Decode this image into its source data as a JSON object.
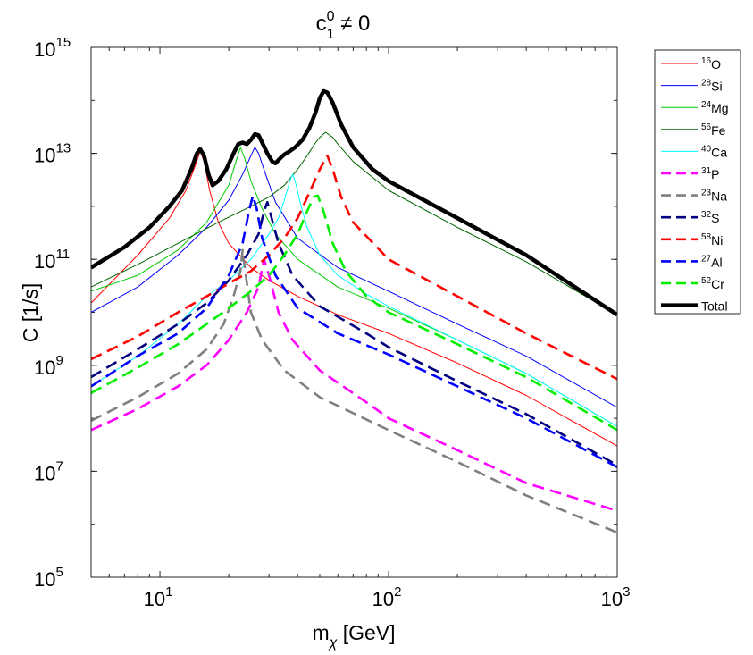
{
  "chart_data": {
    "type": "line",
    "title": {
      "base": "c",
      "sup": "0",
      "sub": "1",
      "rest": " ≠ 0"
    },
    "xlabel": {
      "base": "m",
      "sub": "χ",
      "rest": " [GeV]"
    },
    "ylabel": "C [1/s]",
    "xscale": "log",
    "yscale": "log",
    "xlim": [
      5,
      1000
    ],
    "ylim": [
      100000.0,
      1000000000000000.0
    ],
    "xticks": [
      {
        "value": 10,
        "base": "10",
        "exp": "1"
      },
      {
        "value": 100,
        "base": "10",
        "exp": "2"
      },
      {
        "value": 1000,
        "base": "10",
        "exp": "3"
      }
    ],
    "yticks": [
      {
        "value": 100000.0,
        "base": "10",
        "exp": "5"
      },
      {
        "value": 10000000.0,
        "base": "10",
        "exp": "7"
      },
      {
        "value": 1000000000.0,
        "base": "10",
        "exp": "9"
      },
      {
        "value": 100000000000.0,
        "base": "10",
        "exp": "11"
      },
      {
        "value": 10000000000000.0,
        "base": "10",
        "exp": "13"
      },
      {
        "value": 1000000000000000.0,
        "base": "10",
        "exp": "15"
      }
    ],
    "legend_position": "outside-top-right",
    "series": [
      {
        "name": "O",
        "mass": "16",
        "color": "#ff0000",
        "style": "solid",
        "points": [
          [
            5,
            15000000000.0
          ],
          [
            8,
            120000000000.0
          ],
          [
            11,
            600000000000.0
          ],
          [
            13,
            2000000000000.0
          ],
          [
            14.3,
            6000000000000.0
          ],
          [
            15,
            11000000000000.0
          ],
          [
            15.6,
            7000000000000.0
          ],
          [
            16.5,
            2000000000000.0
          ],
          [
            18,
            500000000000.0
          ],
          [
            20,
            200000000000.0
          ],
          [
            25,
            70000000000.0
          ],
          [
            30,
            40000000000.0
          ],
          [
            40,
            20000000000.0
          ],
          [
            60,
            9000000000.0
          ],
          [
            100,
            4000000000.0
          ],
          [
            200,
            1100000000.0
          ],
          [
            400,
            270000000.0
          ],
          [
            1000,
            30000000.0
          ]
        ]
      },
      {
        "name": "Si",
        "mass": "28",
        "color": "#0000ff",
        "style": "solid",
        "points": [
          [
            5,
            10000000000.0
          ],
          [
            8,
            30000000000.0
          ],
          [
            12,
            120000000000.0
          ],
          [
            16,
            400000000000.0
          ],
          [
            20,
            1300000000000.0
          ],
          [
            23,
            4000000000000.0
          ],
          [
            25,
            9000000000000.0
          ],
          [
            26,
            13000000000000.0
          ],
          [
            27,
            10000000000000.0
          ],
          [
            29,
            4000000000000.0
          ],
          [
            32,
            1200000000000.0
          ],
          [
            40,
            250000000000.0
          ],
          [
            60,
            70000000000.0
          ],
          [
            100,
            25000000000.0
          ],
          [
            200,
            6000000000.0
          ],
          [
            400,
            1500000000.0
          ],
          [
            1000,
            160000000.0
          ]
        ]
      },
      {
        "name": "Mg",
        "mass": "24",
        "color": "#00cc00",
        "style": "solid",
        "points": [
          [
            5,
            25000000000.0
          ],
          [
            8,
            50000000000.0
          ],
          [
            12,
            150000000000.0
          ],
          [
            16,
            500000000000.0
          ],
          [
            20,
            2500000000000.0
          ],
          [
            21.5,
            7000000000000.0
          ],
          [
            22.5,
            13000000000000.0
          ],
          [
            23.5,
            8000000000000.0
          ],
          [
            25,
            3000000000000.0
          ],
          [
            28,
            900000000000.0
          ],
          [
            32,
            300000000000.0
          ],
          [
            40,
            100000000000.0
          ],
          [
            60,
            30000000000.0
          ],
          [
            100,
            12000000000.0
          ],
          [
            200,
            3000000000.0
          ],
          [
            400,
            700000000.0
          ],
          [
            1000,
            70000000.0
          ]
        ]
      },
      {
        "name": "Fe",
        "mass": "56",
        "color": "#006600",
        "style": "solid",
        "points": [
          [
            5,
            30000000000.0
          ],
          [
            8,
            80000000000.0
          ],
          [
            12,
            200000000000.0
          ],
          [
            18,
            500000000000.0
          ],
          [
            25,
            1000000000000.0
          ],
          [
            30,
            1500000000000.0
          ],
          [
            35,
            2500000000000.0
          ],
          [
            40,
            5000000000000.0
          ],
          [
            44,
            9000000000000.0
          ],
          [
            48,
            16000000000000.0
          ],
          [
            50,
            20000000000000.0
          ],
          [
            53,
            25000000000000.0
          ],
          [
            57,
            20000000000000.0
          ],
          [
            60,
            15000000000000.0
          ],
          [
            70,
            7000000000000.0
          ],
          [
            100,
            2000000000000.0
          ],
          [
            200,
            400000000000.0
          ],
          [
            400,
            90000000000.0
          ],
          [
            1000,
            9000000000.0
          ]
        ]
      },
      {
        "name": "Ca",
        "mass": "40",
        "color": "#00ffff",
        "style": "solid",
        "points": [
          [
            5,
            400000000.0
          ],
          [
            8,
            1500000000.0
          ],
          [
            12,
            6000000000.0
          ],
          [
            16,
            20000000000.0
          ],
          [
            20,
            40000000000.0
          ],
          [
            25,
            100000000000.0
          ],
          [
            30,
            300000000000.0
          ],
          [
            33,
            600000000000.0
          ],
          [
            35,
            1300000000000.0
          ],
          [
            37,
            3000000000000.0
          ],
          [
            38,
            4000000000000.0
          ],
          [
            39,
            3000000000000.0
          ],
          [
            41,
            1200000000000.0
          ],
          [
            44,
            400000000000.0
          ],
          [
            50,
            120000000000.0
          ],
          [
            60,
            50000000000.0
          ],
          [
            80,
            22000000000.0
          ],
          [
            100,
            13000000000.0
          ],
          [
            200,
            3000000000.0
          ],
          [
            400,
            700000000.0
          ],
          [
            1000,
            70000000.0
          ]
        ]
      },
      {
        "name": "P",
        "mass": "31",
        "color": "#ff00ff",
        "style": "dashed",
        "points": [
          [
            5,
            60000000.0
          ],
          [
            8,
            150000000.0
          ],
          [
            12,
            400000000.0
          ],
          [
            16,
            1000000000.0
          ],
          [
            20,
            3000000000.0
          ],
          [
            24,
            10000000000.0
          ],
          [
            27,
            30000000000.0
          ],
          [
            28.5,
            100000000000.0
          ],
          [
            30,
            50000000000.0
          ],
          [
            33,
            10000000000.0
          ],
          [
            38,
            3000000000.0
          ],
          [
            50,
            800000000.0
          ],
          [
            80,
            200000000.0
          ],
          [
            100,
            100000000.0
          ],
          [
            200,
            25000000.0
          ],
          [
            400,
            6000000.0
          ],
          [
            1000,
            1800000.0
          ]
        ]
      },
      {
        "name": "Na",
        "mass": "23",
        "color": "#808080",
        "style": "dashed",
        "points": [
          [
            5,
            90000000.0
          ],
          [
            8,
            250000000.0
          ],
          [
            12,
            700000000.0
          ],
          [
            16,
            2000000000.0
          ],
          [
            19,
            6000000000.0
          ],
          [
            21,
            20000000000.0
          ],
          [
            22.5,
            60000000000.0
          ],
          [
            23,
            150000000000.0
          ],
          [
            23.5,
            70000000000.0
          ],
          [
            25,
            10000000000.0
          ],
          [
            28,
            3000000000.0
          ],
          [
            35,
            800000000.0
          ],
          [
            50,
            250000000.0
          ],
          [
            100,
            60000000.0
          ],
          [
            200,
            15000000.0
          ],
          [
            400,
            3500000.0
          ],
          [
            1000,
            700000.0
          ]
        ]
      },
      {
        "name": "S",
        "mass": "32",
        "color": "#000080",
        "style": "dashed",
        "points": [
          [
            5,
            600000000.0
          ],
          [
            8,
            2000000000.0
          ],
          [
            12,
            6000000000.0
          ],
          [
            16,
            15000000000.0
          ],
          [
            20,
            40000000000.0
          ],
          [
            24,
            120000000000.0
          ],
          [
            27,
            300000000000.0
          ],
          [
            28.5,
            800000000000.0
          ],
          [
            29.5,
            1200000000000.0
          ],
          [
            30.5,
            700000000000.0
          ],
          [
            33,
            200000000000.0
          ],
          [
            38,
            50000000000.0
          ],
          [
            50,
            13000000000.0
          ],
          [
            80,
            4000000000.0
          ],
          [
            100,
            2200000000.0
          ],
          [
            200,
            500000000.0
          ],
          [
            400,
            120000000.0
          ],
          [
            1000,
            13000000.0
          ]
        ]
      },
      {
        "name": "Ni",
        "mass": "58",
        "color": "#ff0000",
        "style": "dashed",
        "points": [
          [
            5,
            1300000000.0
          ],
          [
            8,
            3500000000.0
          ],
          [
            12,
            10000000000.0
          ],
          [
            16,
            20000000000.0
          ],
          [
            20,
            35000000000.0
          ],
          [
            25,
            60000000000.0
          ],
          [
            30,
            120000000000.0
          ],
          [
            35,
            250000000000.0
          ],
          [
            40,
            600000000000.0
          ],
          [
            45,
            1800000000000.0
          ],
          [
            50,
            5000000000000.0
          ],
          [
            54,
            9000000000000.0
          ],
          [
            57,
            5000000000000.0
          ],
          [
            62,
            1500000000000.0
          ],
          [
            70,
            500000000000.0
          ],
          [
            100,
            100000000000.0
          ],
          [
            200,
            20000000000.0
          ],
          [
            400,
            4000000000.0
          ],
          [
            1000,
            550000000.0
          ]
        ]
      },
      {
        "name": "Al",
        "mass": "27",
        "color": "#0000ff",
        "style": "dashed",
        "points": [
          [
            5,
            400000000.0
          ],
          [
            8,
            1500000000.0
          ],
          [
            12,
            4000000000.0
          ],
          [
            16,
            12000000000.0
          ],
          [
            20,
            50000000000.0
          ],
          [
            23,
            200000000000.0
          ],
          [
            24.5,
            800000000000.0
          ],
          [
            25.5,
            1600000000000.0
          ],
          [
            26.5,
            900000000000.0
          ],
          [
            28,
            250000000000.0
          ],
          [
            32,
            50000000000.0
          ],
          [
            40,
            12000000000.0
          ],
          [
            60,
            4000000000.0
          ],
          [
            100,
            1600000000.0
          ],
          [
            200,
            400000000.0
          ],
          [
            400,
            100000000.0
          ],
          [
            1000,
            12000000.0
          ]
        ]
      },
      {
        "name": "Cr",
        "mass": "52",
        "color": "#00ee00",
        "style": "dashed",
        "points": [
          [
            5,
            300000000.0
          ],
          [
            8,
            900000000.0
          ],
          [
            12,
            2500000000.0
          ],
          [
            16,
            6000000000.0
          ],
          [
            20,
            12000000000.0
          ],
          [
            25,
            25000000000.0
          ],
          [
            30,
            50000000000.0
          ],
          [
            35,
            120000000000.0
          ],
          [
            40,
            300000000000.0
          ],
          [
            44,
            800000000000.0
          ],
          [
            47,
            1500000000000.0
          ],
          [
            49,
            1600000000000.0
          ],
          [
            52,
            800000000000.0
          ],
          [
            57,
            200000000000.0
          ],
          [
            65,
            60000000000.0
          ],
          [
            80,
            20000000000.0
          ],
          [
            100,
            10000000000.0
          ],
          [
            200,
            2500000000.0
          ],
          [
            400,
            600000000.0
          ],
          [
            1000,
            60000000.0
          ]
        ]
      },
      {
        "name": "Total",
        "mass": "",
        "color": "#000000",
        "style": "thick",
        "points": [
          [
            5,
            70000000000.0
          ],
          [
            7,
            170000000000.0
          ],
          [
            9,
            400000000000.0
          ],
          [
            11,
            1000000000000.0
          ],
          [
            12.5,
            2000000000000.0
          ],
          [
            13.7,
            5000000000000.0
          ],
          [
            14.5,
            10000000000000.0
          ],
          [
            15,
            12000000000000.0
          ],
          [
            15.6,
            9000000000000.0
          ],
          [
            16.3,
            4000000000000.0
          ],
          [
            17,
            2500000000000.0
          ],
          [
            18,
            3000000000000.0
          ],
          [
            19.5,
            5000000000000.0
          ],
          [
            21,
            10000000000000.0
          ],
          [
            22,
            15000000000000.0
          ],
          [
            23,
            16000000000000.0
          ],
          [
            24,
            15000000000000.0
          ],
          [
            25,
            18000000000000.0
          ],
          [
            26,
            23000000000000.0
          ],
          [
            27,
            22000000000000.0
          ],
          [
            28,
            16000000000000.0
          ],
          [
            29.5,
            10000000000000.0
          ],
          [
            31,
            7000000000000.0
          ],
          [
            32,
            6500000000000.0
          ],
          [
            33.5,
            8000000000000.0
          ],
          [
            35,
            9500000000000.0
          ],
          [
            37,
            11000000000000.0
          ],
          [
            39,
            13000000000000.0
          ],
          [
            42,
            18000000000000.0
          ],
          [
            45,
            30000000000000.0
          ],
          [
            48,
            60000000000000.0
          ],
          [
            50,
            110000000000000.0
          ],
          [
            52,
            150000000000000.0
          ],
          [
            54,
            140000000000000.0
          ],
          [
            57,
            90000000000000.0
          ],
          [
            62,
            35000000000000.0
          ],
          [
            70,
            13000000000000.0
          ],
          [
            85,
            5000000000000.0
          ],
          [
            100,
            3000000000000.0
          ],
          [
            200,
            600000000000.0
          ],
          [
            400,
            120000000000.0
          ],
          [
            1000,
            9000000000.0
          ]
        ]
      }
    ]
  }
}
